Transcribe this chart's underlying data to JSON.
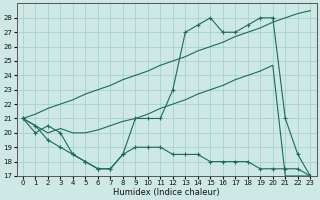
{
  "xlabel": "Humidex (Indice chaleur)",
  "bg_color": "#cde8e5",
  "grid_color": "#9ecfca",
  "line_color": "#1a6b5a",
  "x_values": [
    0,
    1,
    2,
    3,
    4,
    5,
    6,
    7,
    8,
    9,
    10,
    11,
    12,
    13,
    14,
    15,
    16,
    17,
    18,
    19,
    20,
    21,
    22,
    23
  ],
  "y_main": [
    21.0,
    20.0,
    20.5,
    20.0,
    18.5,
    18.0,
    17.5,
    17.5,
    18.5,
    21.0,
    21.0,
    21.0,
    23.0,
    27.0,
    27.5,
    28.0,
    27.0,
    27.0,
    27.5,
    28.0,
    28.0,
    21.0,
    18.5,
    17.0
  ],
  "y_upper_diag": [
    21.0,
    21.3,
    21.7,
    22.0,
    22.3,
    22.7,
    23.0,
    23.3,
    23.7,
    24.0,
    24.3,
    24.7,
    25.0,
    25.3,
    25.7,
    26.0,
    26.3,
    26.7,
    27.0,
    27.3,
    27.7,
    28.0,
    28.3,
    28.5
  ],
  "y_lower_diag": [
    21.0,
    20.5,
    20.0,
    20.3,
    20.0,
    20.0,
    20.2,
    20.5,
    20.8,
    21.0,
    21.3,
    21.7,
    22.0,
    22.3,
    22.7,
    23.0,
    23.3,
    23.7,
    24.0,
    24.3,
    24.7,
    17.0,
    17.0,
    17.0
  ],
  "y_bottom": [
    21.0,
    20.5,
    19.5,
    19.0,
    18.5,
    18.0,
    17.5,
    17.5,
    18.5,
    19.0,
    19.0,
    19.0,
    18.5,
    18.5,
    18.5,
    18.0,
    18.0,
    18.0,
    18.0,
    17.5,
    17.5,
    17.5,
    17.5,
    17.0
  ],
  "ylim": [
    17,
    29
  ],
  "xlim": [
    -0.5,
    23.5
  ],
  "yticks": [
    17,
    18,
    19,
    20,
    21,
    22,
    23,
    24,
    25,
    26,
    27,
    28
  ],
  "xticks": [
    0,
    1,
    2,
    3,
    4,
    5,
    6,
    7,
    8,
    9,
    10,
    11,
    12,
    13,
    14,
    15,
    16,
    17,
    18,
    19,
    20,
    21,
    22,
    23
  ]
}
